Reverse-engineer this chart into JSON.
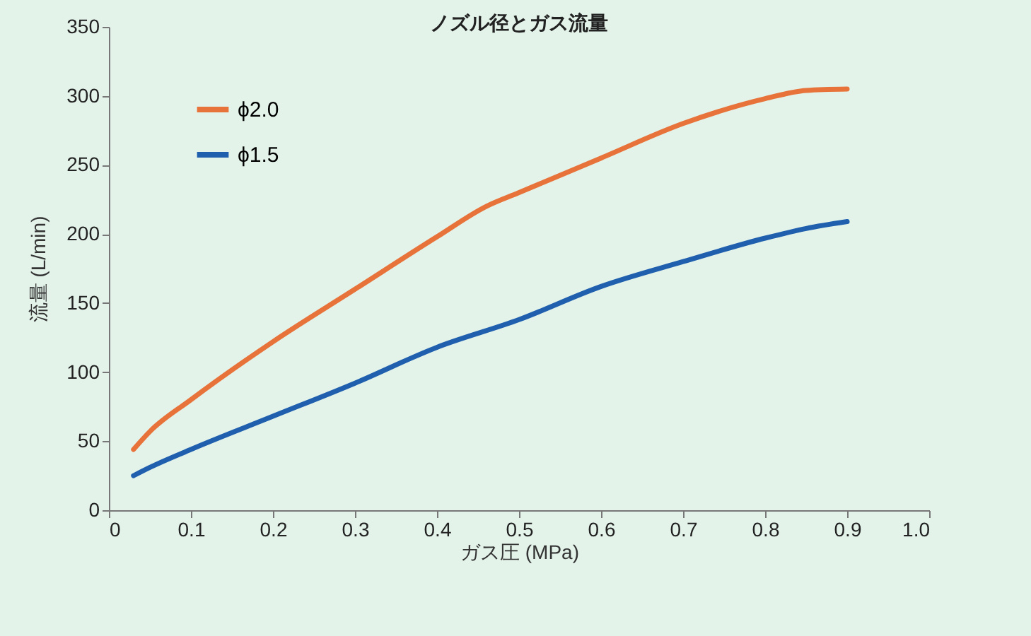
{
  "chart_data": {
    "type": "line",
    "title": "ノズル径とガス流量",
    "xlabel": "ガス圧 (MPa)",
    "ylabel": "流量 (L/min)",
    "xlim": [
      0,
      1.0
    ],
    "xticks": [
      0,
      0.1,
      0.2,
      0.3,
      0.4,
      0.5,
      0.6,
      0.7,
      0.8,
      0.9,
      {
        "value": 1.0,
        "label": "1.0"
      }
    ],
    "ylim": [
      0,
      350
    ],
    "yticks": [
      0,
      50,
      100,
      150,
      200,
      250,
      300,
      350
    ],
    "grid": false,
    "legend": "top left",
    "marker": "none",
    "line_style": "solid",
    "series": [
      {
        "name": "ϕ2.0",
        "color": "#e8733a",
        "x": [
          0.03,
          0.05,
          0.1,
          0.2,
          0.3,
          0.4,
          0.46,
          0.5,
          0.6,
          0.7,
          0.8,
          0.85,
          0.9
        ],
        "values": [
          44,
          57,
          80,
          122,
          160,
          198,
          220,
          230,
          255,
          280,
          298,
          304,
          305
        ]
      },
      {
        "name": "ϕ1.5",
        "color": "#1f5fae",
        "x": [
          0.03,
          0.05,
          0.1,
          0.2,
          0.3,
          0.4,
          0.5,
          0.6,
          0.7,
          0.8,
          0.85,
          0.9
        ],
        "values": [
          25,
          31,
          44,
          68,
          92,
          118,
          138,
          162,
          180,
          197,
          204,
          209
        ]
      }
    ]
  }
}
